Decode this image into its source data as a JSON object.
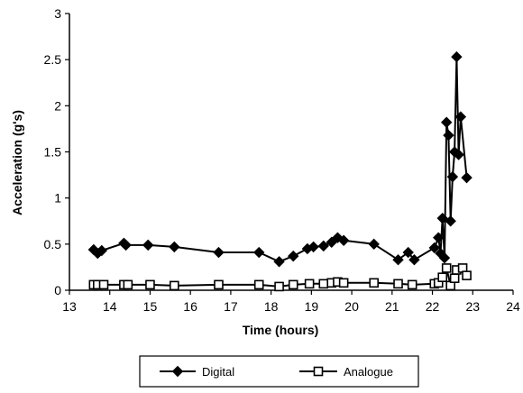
{
  "chart_data": {
    "type": "line",
    "title": "",
    "xlabel": "Time (hours)",
    "ylabel": "Acceleration (g's)",
    "xlim": [
      13,
      24
    ],
    "ylim": [
      0,
      3
    ],
    "x_ticks": [
      "13",
      "14",
      "15",
      "16",
      "17",
      "18",
      "19",
      "20",
      "21",
      "22",
      "23",
      "24"
    ],
    "y_ticks": [
      "0",
      "0.5",
      "1",
      "1.5",
      "2",
      "2.5",
      "3"
    ],
    "grid": false,
    "legend_position": "bottom",
    "series": [
      {
        "name": "Digital",
        "marker": "diamond",
        "color": "#000000",
        "points": [
          [
            13.6,
            0.44
          ],
          [
            13.7,
            0.4
          ],
          [
            13.8,
            0.43
          ],
          [
            14.35,
            0.51
          ],
          [
            14.4,
            0.49
          ],
          [
            14.95,
            0.49
          ],
          [
            15.6,
            0.47
          ],
          [
            16.7,
            0.41
          ],
          [
            17.7,
            0.41
          ],
          [
            18.2,
            0.31
          ],
          [
            18.55,
            0.37
          ],
          [
            18.9,
            0.45
          ],
          [
            19.05,
            0.47
          ],
          [
            19.3,
            0.48
          ],
          [
            19.5,
            0.52
          ],
          [
            19.65,
            0.57
          ],
          [
            19.8,
            0.54
          ],
          [
            20.55,
            0.5
          ],
          [
            21.15,
            0.33
          ],
          [
            21.4,
            0.41
          ],
          [
            21.55,
            0.33
          ],
          [
            22.05,
            0.46
          ],
          [
            22.15,
            0.57
          ],
          [
            22.2,
            0.4
          ],
          [
            22.25,
            0.78
          ],
          [
            22.3,
            0.35
          ],
          [
            22.35,
            1.82
          ],
          [
            22.4,
            1.68
          ],
          [
            22.45,
            0.75
          ],
          [
            22.5,
            1.23
          ],
          [
            22.55,
            1.5
          ],
          [
            22.6,
            2.53
          ],
          [
            22.65,
            1.47
          ],
          [
            22.7,
            1.88
          ],
          [
            22.85,
            1.22
          ]
        ]
      },
      {
        "name": "Analogue",
        "marker": "square",
        "color": "#000000",
        "points": [
          [
            13.6,
            0.06
          ],
          [
            13.7,
            0.06
          ],
          [
            13.85,
            0.06
          ],
          [
            14.35,
            0.06
          ],
          [
            14.45,
            0.06
          ],
          [
            15.0,
            0.06
          ],
          [
            15.6,
            0.05
          ],
          [
            16.7,
            0.06
          ],
          [
            17.7,
            0.06
          ],
          [
            18.2,
            0.04
          ],
          [
            18.55,
            0.06
          ],
          [
            18.95,
            0.07
          ],
          [
            19.3,
            0.07
          ],
          [
            19.5,
            0.08
          ],
          [
            19.65,
            0.09
          ],
          [
            19.8,
            0.08
          ],
          [
            20.55,
            0.08
          ],
          [
            21.15,
            0.07
          ],
          [
            21.5,
            0.06
          ],
          [
            22.05,
            0.07
          ],
          [
            22.15,
            0.08
          ],
          [
            22.25,
            0.14
          ],
          [
            22.35,
            0.24
          ],
          [
            22.45,
            0.05
          ],
          [
            22.55,
            0.13
          ],
          [
            22.6,
            0.22
          ],
          [
            22.75,
            0.24
          ],
          [
            22.85,
            0.16
          ]
        ]
      }
    ]
  }
}
